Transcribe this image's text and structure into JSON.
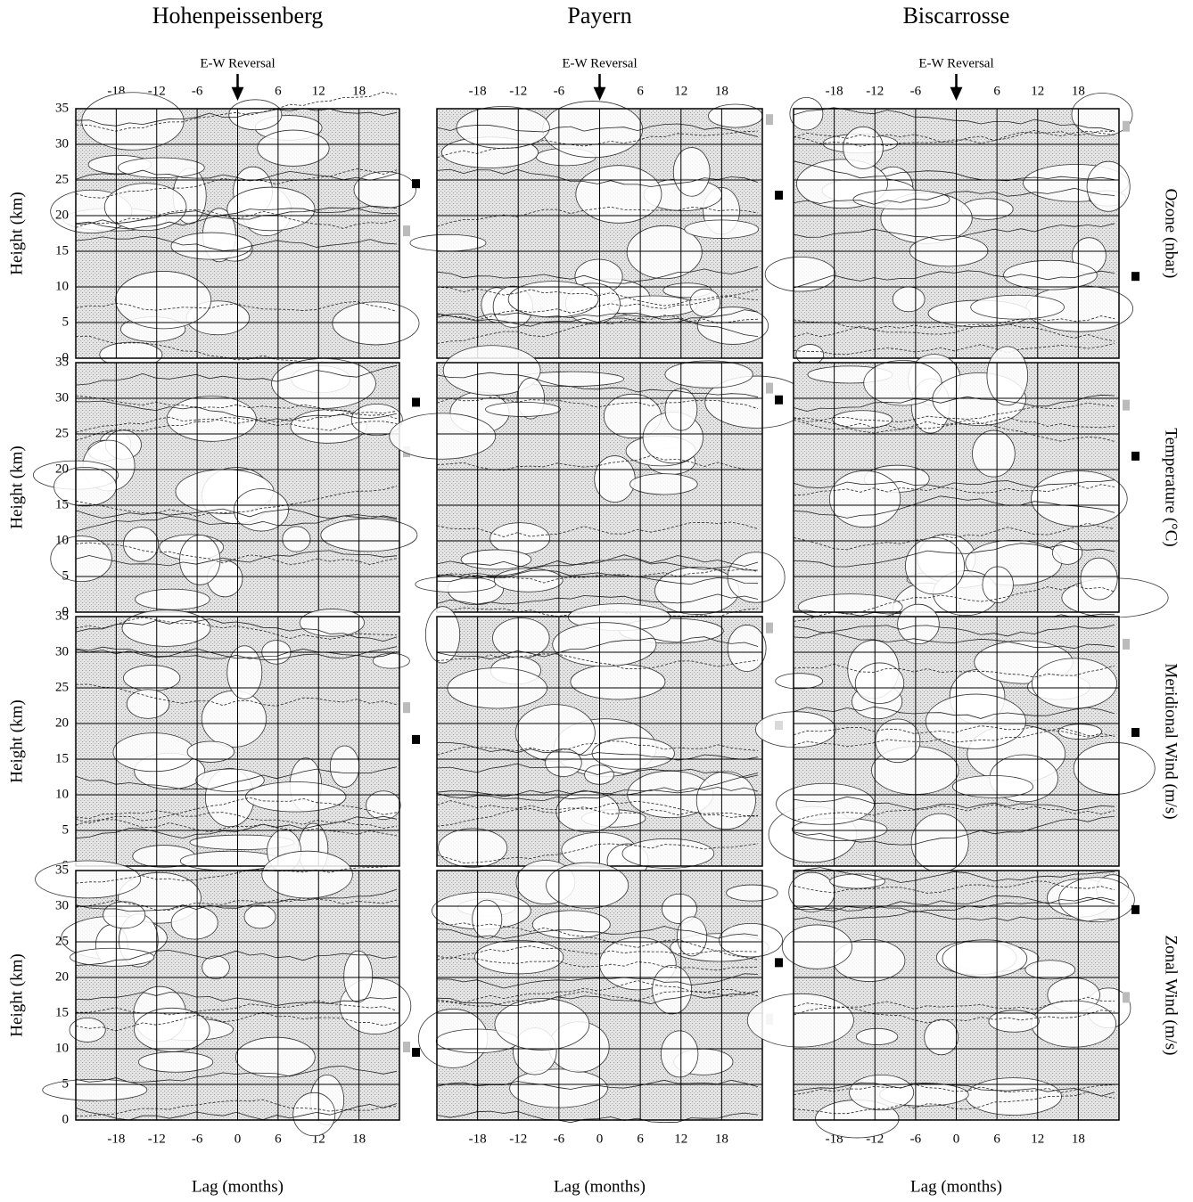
{
  "figure": {
    "columns": [
      "Hohenpeissenberg",
      "Payern",
      "Biscarrosse"
    ],
    "rows": [
      "Ozone (nbar)",
      "Temperature (°C)",
      "Meridional Wind (m/s)",
      "Zonal Wind (m/s)"
    ],
    "annotation": "E-W Reversal",
    "y_label": "Height (km)",
    "x_label": "Lag (months)",
    "xlim": [
      -24,
      24
    ],
    "xticks": [
      -18,
      -12,
      -6,
      0,
      6,
      12,
      18
    ],
    "ylim": [
      0,
      35
    ],
    "yticks": [
      0,
      5,
      10,
      15,
      20,
      25,
      30,
      35
    ]
  }
}
